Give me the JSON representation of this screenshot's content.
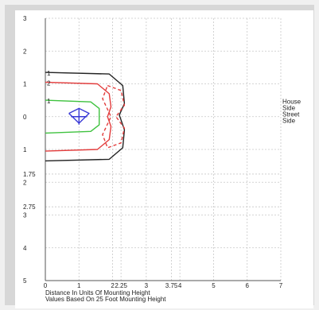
{
  "chart_data": {
    "type": "line",
    "title": "",
    "xlabel": "Distance In Units Of Mounting Height",
    "caption": "Values Based On 25 Foot Mounting Height",
    "xlim": [
      0,
      7
    ],
    "ylim": [
      -5,
      3
    ],
    "x_ticks": [
      0,
      1,
      2,
      2.25,
      3,
      3.75,
      4,
      5,
      6,
      7
    ],
    "y_tick_labels": [
      "3",
      "2",
      "1",
      "0",
      "1",
      "1.75",
      "2",
      "2.75",
      "3",
      "4",
      "5"
    ],
    "y_tick_positions": [
      3,
      2,
      1,
      0,
      -1,
      -1.75,
      -2,
      -2.75,
      -3,
      -4,
      -5
    ],
    "side_labels": [
      "House",
      "Side",
      "Street",
      "Side"
    ],
    "grid": true,
    "series": [
      {
        "label": "1",
        "color": "#222222",
        "dash": "solid",
        "points": [
          [
            0,
            1.35
          ],
          [
            1.9,
            1.3
          ],
          [
            2.3,
            0.95
          ],
          [
            2.35,
            0.4
          ],
          [
            2.2,
            0.05
          ],
          [
            2.35,
            -0.4
          ],
          [
            2.3,
            -0.95
          ],
          [
            1.9,
            -1.3
          ],
          [
            0,
            -1.35
          ]
        ]
      },
      {
        "label": "2",
        "color": "#e23c3c",
        "dash": "solid",
        "points": [
          [
            0,
            1.05
          ],
          [
            1.55,
            1.0
          ],
          [
            1.9,
            0.7
          ],
          [
            1.95,
            0.3
          ],
          [
            1.85,
            0.0
          ],
          [
            1.95,
            -0.3
          ],
          [
            1.9,
            -0.7
          ],
          [
            1.55,
            -1.0
          ],
          [
            0,
            -1.05
          ]
        ]
      },
      {
        "label": "1",
        "color": "#3fc23f",
        "dash": "solid",
        "points": [
          [
            0,
            0.5
          ],
          [
            1.35,
            0.45
          ],
          [
            1.6,
            0.25
          ],
          [
            1.6,
            -0.25
          ],
          [
            1.35,
            -0.45
          ],
          [
            0,
            -0.5
          ]
        ]
      },
      {
        "label": "",
        "color": "#e23c3c",
        "dash": "dashed",
        "points": [
          [
            1.85,
            0.95
          ],
          [
            2.25,
            0.8
          ],
          [
            2.35,
            0.35
          ],
          [
            2.1,
            0.0
          ],
          [
            2.35,
            -0.35
          ],
          [
            2.25,
            -0.8
          ],
          [
            1.85,
            -0.95
          ],
          [
            1.7,
            -0.55
          ],
          [
            1.95,
            0.0
          ],
          [
            1.7,
            0.55
          ],
          [
            1.85,
            0.95
          ]
        ]
      },
      {
        "label": "",
        "color": "#3a3ad6",
        "dash": "solid",
        "points": [
          [
            0.7,
            0.1
          ],
          [
            1.0,
            0.25
          ],
          [
            1.3,
            0.1
          ],
          [
            1.0,
            -0.2
          ],
          [
            0.7,
            0.1
          ]
        ]
      }
    ],
    "luminaire_marker": {
      "x": 1.0,
      "y": 0.0,
      "color": "#3a3ad6"
    }
  }
}
